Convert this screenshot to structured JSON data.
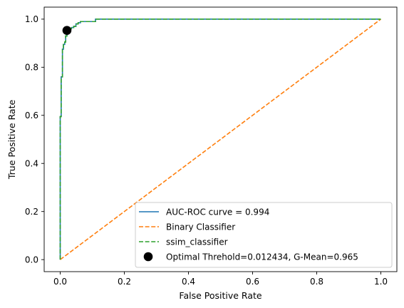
{
  "chart_data": {
    "type": "line",
    "xlabel": "False Positive Rate",
    "ylabel": "True Positive Rate",
    "xlim": [
      -0.05,
      1.05
    ],
    "ylim": [
      -0.05,
      1.05
    ],
    "xticks": [
      0.0,
      0.2,
      0.4,
      0.6,
      0.8,
      1.0
    ],
    "yticks": [
      0.0,
      0.2,
      0.4,
      0.6,
      0.8,
      1.0
    ],
    "xtick_labels": [
      "0.0",
      "0.2",
      "0.4",
      "0.6",
      "0.8",
      "1.0"
    ],
    "ytick_labels": [
      "0.0",
      "0.2",
      "0.4",
      "0.6",
      "0.8",
      "1.0"
    ],
    "grid": false,
    "legend_position": "lower-right",
    "series": [
      {
        "name": "AUC-ROC curve = 0.994",
        "style": "solid",
        "color": "#1f77b4",
        "x": [
          0.0,
          0.0,
          0.003,
          0.003,
          0.007,
          0.007,
          0.01,
          0.01,
          0.014,
          0.014,
          0.017,
          0.017,
          0.021,
          0.021,
          0.028,
          0.028,
          0.035,
          0.035,
          0.042,
          0.042,
          0.049,
          0.049,
          0.056,
          0.056,
          0.063,
          0.063,
          0.11,
          0.11,
          1.0
        ],
        "y": [
          0.0,
          0.595,
          0.595,
          0.76,
          0.76,
          0.875,
          0.875,
          0.895,
          0.895,
          0.905,
          0.905,
          0.93,
          0.93,
          0.953,
          0.953,
          0.96,
          0.96,
          0.965,
          0.965,
          0.97,
          0.97,
          0.98,
          0.98,
          0.985,
          0.985,
          0.99,
          0.99,
          1.0,
          1.0
        ]
      },
      {
        "name": "Binary Classifier",
        "style": "dashed",
        "color": "#ff7f0e",
        "x": [
          0.0,
          1.0
        ],
        "y": [
          0.0,
          1.0
        ]
      },
      {
        "name": "ssim_classifier",
        "style": "dashed",
        "color": "#2ca02c",
        "x": [
          0.0,
          0.0,
          0.003,
          0.003,
          0.007,
          0.007,
          0.01,
          0.01,
          0.014,
          0.014,
          0.017,
          0.017,
          0.021,
          0.021,
          0.028,
          0.028,
          0.035,
          0.035,
          0.042,
          0.042,
          0.049,
          0.049,
          0.056,
          0.056,
          0.063,
          0.063,
          0.11,
          0.11,
          1.0
        ],
        "y": [
          0.0,
          0.595,
          0.595,
          0.76,
          0.76,
          0.875,
          0.875,
          0.895,
          0.895,
          0.905,
          0.905,
          0.93,
          0.93,
          0.953,
          0.953,
          0.96,
          0.96,
          0.965,
          0.965,
          0.97,
          0.97,
          0.98,
          0.98,
          0.985,
          0.985,
          0.99,
          0.99,
          1.0,
          1.0
        ]
      }
    ],
    "points": [
      {
        "name": "Optimal Threhold=0.012434, G-Mean=0.965",
        "color": "#000000",
        "x": 0.021,
        "y": 0.953
      }
    ]
  }
}
